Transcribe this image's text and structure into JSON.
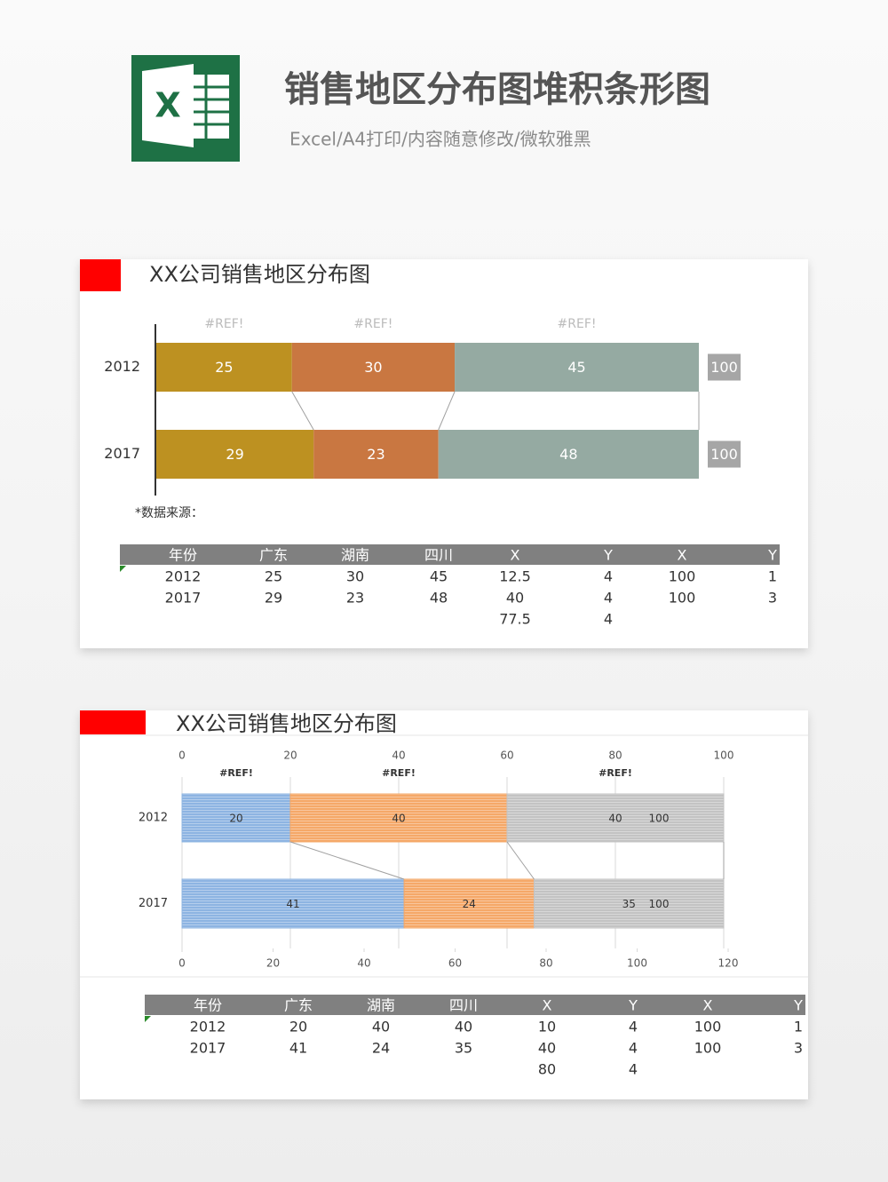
{
  "header": {
    "icon_text": "X",
    "title": "销售地区分布图堆积条形图",
    "subtitle": "Excel/A4打印/内容随意修改/微软雅黑"
  },
  "chart_data": [
    {
      "type": "bar",
      "orientation": "horizontal",
      "stacked": true,
      "title": "XX公司销售地区分布图",
      "categories": [
        "2012",
        "2017"
      ],
      "series": [
        {
          "name": "#REF!",
          "color": "#bd9121",
          "values": [
            25,
            29
          ]
        },
        {
          "name": "#REF!",
          "color": "#c97741",
          "values": [
            30,
            23
          ]
        },
        {
          "name": "#REF!",
          "color": "#95aaa2",
          "values": [
            45,
            48
          ]
        }
      ],
      "totals": [
        100,
        100
      ],
      "total_style": "box",
      "label_color": "#ffffff",
      "xlim": [
        0,
        100
      ],
      "grid": false,
      "series_lines": true,
      "fill_style": "solid",
      "source_note": "*数据来源："
    },
    {
      "type": "bar",
      "orientation": "horizontal",
      "stacked": true,
      "title": "XX公司销售地区分布图",
      "categories": [
        "2012",
        "2017"
      ],
      "series": [
        {
          "name": "#REF!",
          "color": "#8db4e2",
          "values": [
            20,
            41
          ]
        },
        {
          "name": "#REF!",
          "color": "#f5a868",
          "values": [
            40,
            24
          ]
        },
        {
          "name": "#REF!",
          "color": "#c3c3c3",
          "values": [
            40,
            35
          ]
        }
      ],
      "totals": [
        100,
        100
      ],
      "total_style": "text",
      "label_color": "#333333",
      "xlim": [
        0,
        100
      ],
      "xticks": [
        0,
        20,
        40,
        60,
        80,
        100
      ],
      "x2lim": [
        0,
        120
      ],
      "x2ticks": [
        0,
        20,
        40,
        60,
        80,
        100,
        120
      ],
      "grid": true,
      "series_lines": true,
      "fill_style": "horizontal-stripes"
    }
  ],
  "tables": [
    {
      "header": [
        "年份",
        "广东",
        "湖南",
        "四川",
        "X",
        "Y",
        "X",
        "Y"
      ],
      "rows": [
        [
          "2012",
          25,
          30,
          45,
          12.5,
          4,
          100,
          1
        ],
        [
          "2017",
          29,
          23,
          48,
          40,
          4,
          100,
          3
        ],
        [
          null,
          null,
          null,
          null,
          77.5,
          4,
          null,
          null
        ]
      ]
    },
    {
      "header": [
        "年份",
        "广东",
        "湖南",
        "四川",
        "X",
        "Y",
        "X",
        "Y"
      ],
      "rows": [
        [
          "2012",
          20,
          40,
          40,
          10,
          4,
          100,
          1
        ],
        [
          "2017",
          41,
          24,
          35,
          40,
          4,
          100,
          3
        ],
        [
          null,
          null,
          null,
          null,
          80,
          4,
          null,
          null
        ]
      ]
    }
  ]
}
